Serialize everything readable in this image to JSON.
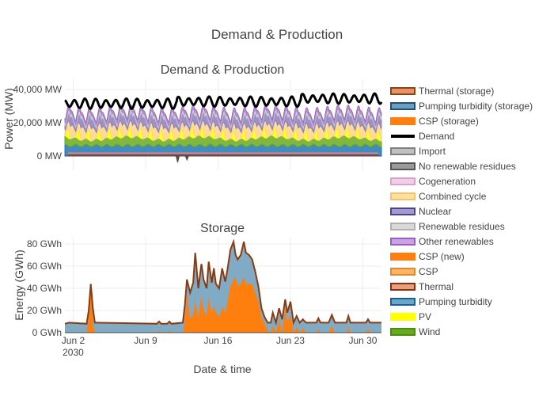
{
  "figure_title": "Demand & Production",
  "chart_data": [
    {
      "type": "area",
      "title": "Demand & Production",
      "ylabel": "Power (MW)",
      "ylim": [
        -5000,
        45000
      ],
      "yticks": [
        {
          "value": 0,
          "label": "0 MW"
        },
        {
          "value": 20000,
          "label": "20,000 MW"
        },
        {
          "value": 40000,
          "label": "40,000 MW"
        }
      ],
      "x_range_days": [
        1.2,
        31.8
      ],
      "stacked_series": [
        {
          "name": "Pumping turbidity",
          "color": "#1f77b4",
          "base": 5500,
          "amp": 1500
        },
        {
          "name": "Wind",
          "color": "#6aaa1e",
          "base": 3500,
          "amp": 2500
        },
        {
          "name": "PV",
          "color": "#ffff00",
          "base": 0,
          "amp": 6000
        },
        {
          "name": "Combined cycle",
          "color": "#ffd58a",
          "base": 3000,
          "amp": 5000
        },
        {
          "name": "Nuclear",
          "color": "#8c7fbe",
          "base": 2500,
          "amp": 3000
        },
        {
          "name": "Renewable residues",
          "color": "#c8c8c8",
          "base": 1500,
          "amp": 800
        },
        {
          "name": "Other renewables",
          "color": "#b07fd4",
          "base": 1500,
          "amp": 800
        }
      ],
      "demand": {
        "name": "Demand",
        "base": 29000,
        "amp": 5000
      },
      "storage_negative_dips": [
        {
          "day": 12.1,
          "value": -3800
        },
        {
          "day": 13.0,
          "value": -2400
        }
      ],
      "baseline_lines": [
        {
          "name": "Thermal",
          "value": 600,
          "color": "#c0392b"
        },
        {
          "name": "Import",
          "value": 1800,
          "color": "#d98c8c"
        }
      ]
    },
    {
      "type": "area",
      "title": "Storage",
      "ylabel": "Energy (GWh)",
      "ylim": [
        0,
        85
      ],
      "yticks": [
        {
          "value": 0,
          "label": "0 GWh"
        },
        {
          "value": 20,
          "label": "20 GWh"
        },
        {
          "value": 40,
          "label": "40 GWh"
        },
        {
          "value": 60,
          "label": "60 GWh"
        },
        {
          "value": 80,
          "label": "80 GWh"
        }
      ],
      "xlabel": "Date & time",
      "xticks": [
        {
          "day": 2,
          "label": "Jun 2",
          "sublabel": "2030"
        },
        {
          "day": 9,
          "label": "Jun 9",
          "sublabel": ""
        },
        {
          "day": 16,
          "label": "Jun 16",
          "sublabel": ""
        },
        {
          "day": 23,
          "label": "Jun 23",
          "sublabel": ""
        },
        {
          "day": 30,
          "label": "Jun 30",
          "sublabel": ""
        }
      ],
      "series": [
        {
          "name": "CSP (storage)",
          "color": "#ff7f0e",
          "points": [
            [
              1.2,
              0
            ],
            [
              3.3,
              0
            ],
            [
              3.5,
              12
            ],
            [
              3.7,
              44
            ],
            [
              3.9,
              8
            ],
            [
              4.1,
              0
            ],
            [
              10.1,
              0
            ],
            [
              10.3,
              2
            ],
            [
              10.5,
              0
            ],
            [
              11.1,
              0
            ],
            [
              11.3,
              2
            ],
            [
              11.5,
              0
            ],
            [
              12.6,
              0
            ],
            [
              12.8,
              10
            ],
            [
              13.0,
              35
            ],
            [
              13.3,
              13
            ],
            [
              13.6,
              16
            ],
            [
              13.8,
              28
            ],
            [
              14.1,
              14
            ],
            [
              14.4,
              33
            ],
            [
              14.6,
              20
            ],
            [
              14.9,
              15
            ],
            [
              15.1,
              32
            ],
            [
              15.4,
              18
            ],
            [
              15.6,
              24
            ],
            [
              15.8,
              18
            ],
            [
              16.1,
              14
            ],
            [
              16.4,
              23
            ],
            [
              16.7,
              18
            ],
            [
              16.9,
              27
            ],
            [
              17.2,
              42
            ],
            [
              17.5,
              48
            ],
            [
              17.7,
              50
            ],
            [
              17.9,
              42
            ],
            [
              18.2,
              44
            ],
            [
              18.5,
              50
            ],
            [
              18.7,
              44
            ],
            [
              19.0,
              44
            ],
            [
              19.3,
              44
            ],
            [
              19.6,
              36
            ],
            [
              19.9,
              28
            ],
            [
              20.2,
              14
            ],
            [
              20.5,
              8
            ],
            [
              20.8,
              2
            ],
            [
              21.1,
              0
            ],
            [
              21.3,
              6
            ],
            [
              21.6,
              0
            ],
            [
              21.9,
              12
            ],
            [
              22.2,
              0
            ],
            [
              22.5,
              22
            ],
            [
              22.7,
              10
            ],
            [
              23.0,
              16
            ],
            [
              23.3,
              0
            ],
            [
              23.6,
              5
            ],
            [
              23.9,
              0
            ],
            [
              24.2,
              4
            ],
            [
              24.5,
              0
            ],
            [
              25.5,
              0
            ],
            [
              25.7,
              3
            ],
            [
              25.9,
              0
            ],
            [
              26.7,
              0
            ],
            [
              27.0,
              6
            ],
            [
              27.3,
              0
            ],
            [
              28.4,
              0
            ],
            [
              28.6,
              5
            ],
            [
              28.8,
              0
            ],
            [
              30.3,
              0
            ],
            [
              30.5,
              4
            ],
            [
              30.7,
              0
            ],
            [
              31.8,
              0
            ]
          ]
        },
        {
          "name": "Pumping turbidity (storage)",
          "color": "#7aa6c2",
          "base_level": 8,
          "points": [
            [
              1.2,
              8
            ],
            [
              1.6,
              9
            ],
            [
              3.3,
              8
            ],
            [
              3.5,
              20
            ],
            [
              3.7,
              44
            ],
            [
              3.9,
              22
            ],
            [
              4.1,
              9
            ],
            [
              10.1,
              8
            ],
            [
              10.3,
              10
            ],
            [
              10.5,
              8
            ],
            [
              11.1,
              8
            ],
            [
              11.3,
              10
            ],
            [
              11.5,
              8
            ],
            [
              12.6,
              9
            ],
            [
              12.8,
              25
            ],
            [
              13.0,
              48
            ],
            [
              13.3,
              36
            ],
            [
              13.6,
              45
            ],
            [
              13.8,
              72
            ],
            [
              14.1,
              40
            ],
            [
              14.4,
              62
            ],
            [
              14.6,
              48
            ],
            [
              14.9,
              40
            ],
            [
              15.1,
              64
            ],
            [
              15.4,
              45
            ],
            [
              15.6,
              58
            ],
            [
              15.8,
              44
            ],
            [
              16.1,
              40
            ],
            [
              16.4,
              58
            ],
            [
              16.7,
              46
            ],
            [
              16.9,
              56
            ],
            [
              17.2,
              75
            ],
            [
              17.5,
              82
            ],
            [
              17.7,
              70
            ],
            [
              17.9,
              66
            ],
            [
              18.2,
              70
            ],
            [
              18.5,
              82
            ],
            [
              18.7,
              72
            ],
            [
              19.0,
              70
            ],
            [
              19.3,
              66
            ],
            [
              19.6,
              55
            ],
            [
              19.9,
              42
            ],
            [
              20.2,
              22
            ],
            [
              20.5,
              14
            ],
            [
              20.8,
              9
            ],
            [
              21.1,
              9
            ],
            [
              21.3,
              18
            ],
            [
              21.6,
              9
            ],
            [
              21.9,
              22
            ],
            [
              22.2,
              12
            ],
            [
              22.5,
              30
            ],
            [
              22.7,
              18
            ],
            [
              23.0,
              28
            ],
            [
              23.3,
              9
            ],
            [
              23.6,
              15
            ],
            [
              23.9,
              9
            ],
            [
              24.2,
              12
            ],
            [
              24.5,
              9
            ],
            [
              25.5,
              9
            ],
            [
              25.7,
              13
            ],
            [
              25.9,
              9
            ],
            [
              26.7,
              9
            ],
            [
              27.0,
              16
            ],
            [
              27.3,
              9
            ],
            [
              28.4,
              9
            ],
            [
              28.6,
              15
            ],
            [
              28.8,
              9
            ],
            [
              30.3,
              9
            ],
            [
              30.5,
              12
            ],
            [
              30.7,
              9
            ],
            [
              31.8,
              9
            ]
          ]
        }
      ]
    }
  ],
  "legend": [
    {
      "label": "Thermal (storage)",
      "fill": "#e8916b",
      "line": "#8b4513"
    },
    {
      "label": "Pumping turbidity (storage)",
      "fill": "#6a9fc0",
      "line": "#1f4e79"
    },
    {
      "label": "CSP (storage)",
      "fill": "#ff7f0e",
      "line": "#ff7f0e"
    },
    {
      "label": "Demand",
      "fill": "#000000",
      "line": "#000000"
    },
    {
      "label": "Import",
      "fill": "#c0c0c0",
      "line": "#808080"
    },
    {
      "label": "No renewable residues",
      "fill": "#9a9a9a",
      "line": "#555555"
    },
    {
      "label": "Cogeneration",
      "fill": "#f2cfe6",
      "line": "#d9a3c9"
    },
    {
      "label": "Combined cycle",
      "fill": "#ffe0a0",
      "line": "#f5c26b"
    },
    {
      "label": "Nuclear",
      "fill": "#a39ad0",
      "line": "#4b4590"
    },
    {
      "label": "Renewable residues",
      "fill": "#d9d9d9",
      "line": "#b0b0b0"
    },
    {
      "label": "Other renewables",
      "fill": "#c9a3e0",
      "line": "#9a5fc7"
    },
    {
      "label": "CSP (new)",
      "fill": "#ff7f0e",
      "line": "#ff7f0e"
    },
    {
      "label": "CSP",
      "fill": "#ffb366",
      "line": "#e08a2e"
    },
    {
      "label": "Thermal",
      "fill": "#e8a07a",
      "line": "#8b2e0f"
    },
    {
      "label": "Pumping turbidity",
      "fill": "#6aa7c9",
      "line": "#1f5f8b"
    },
    {
      "label": "PV",
      "fill": "#ffff00",
      "line": "#ffff00"
    },
    {
      "label": "Wind",
      "fill": "#6aaa1e",
      "line": "#4d8a10"
    }
  ]
}
